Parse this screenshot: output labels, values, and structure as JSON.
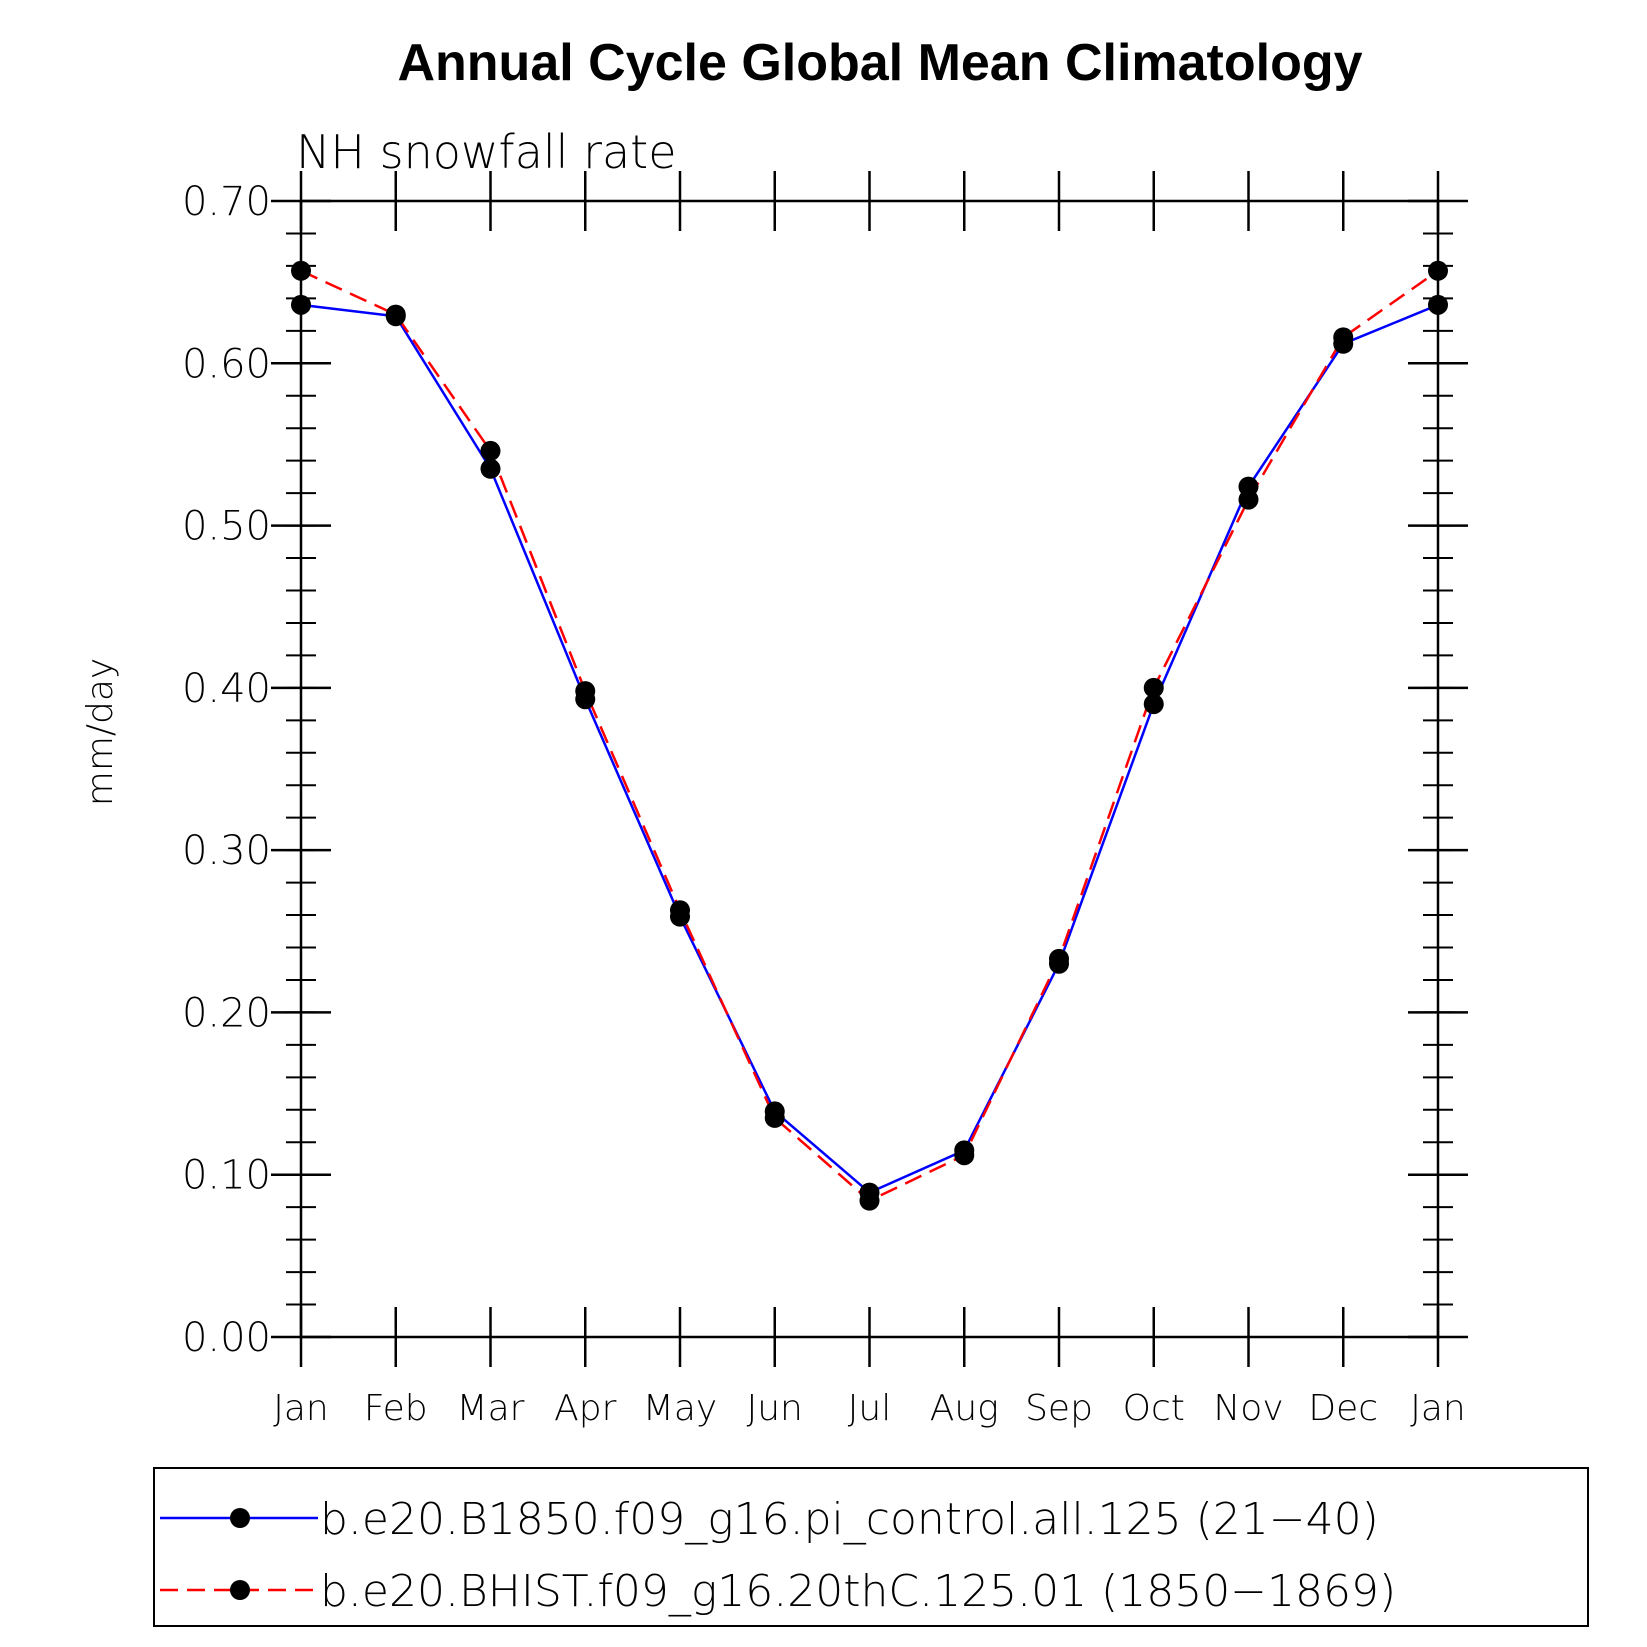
{
  "chart_data": {
    "type": "line",
    "title": "Annual Cycle Global Mean Climatology",
    "subtitle": "NH snowfall rate",
    "xlabel": "",
    "ylabel": "mm/day",
    "ylim": [
      0.0,
      0.7
    ],
    "yticks": [
      "0.00",
      "0.10",
      "0.20",
      "0.30",
      "0.40",
      "0.50",
      "0.60",
      "0.70"
    ],
    "categories": [
      "Jan",
      "Feb",
      "Mar",
      "Apr",
      "May",
      "Jun",
      "Jul",
      "Aug",
      "Sep",
      "Oct",
      "Nov",
      "Dec",
      "Jan"
    ],
    "series": [
      {
        "name": "b.e20.B1850.f09_g16.pi_control.all.125 (21−40)",
        "color": "#0000ff",
        "dash": "solid",
        "values": [
          0.636,
          0.629,
          0.535,
          0.393,
          0.259,
          0.139,
          0.089,
          0.115,
          0.23,
          0.39,
          0.524,
          0.612,
          0.636
        ]
      },
      {
        "name": "b.e20.BHIST.f09_g16.20thC.125.01 (1850−1869)",
        "color": "#ff0000",
        "dash": "dashed",
        "values": [
          0.657,
          0.63,
          0.546,
          0.398,
          0.263,
          0.135,
          0.084,
          0.112,
          0.233,
          0.4,
          0.516,
          0.616,
          0.657
        ]
      }
    ],
    "legend_position": "bottom"
  }
}
